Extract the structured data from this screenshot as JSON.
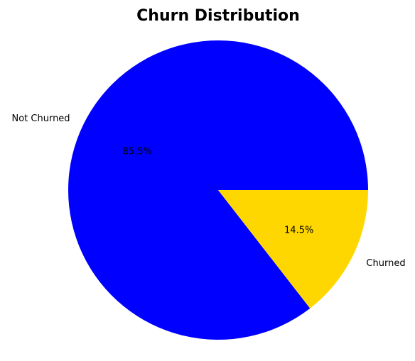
{
  "chart_data": {
    "type": "pie",
    "title": "Churn Distribution",
    "categories": [
      "Not Churned",
      "Churned"
    ],
    "values": [
      85.5,
      14.5
    ],
    "percent_labels": [
      "85.5%",
      "14.5%"
    ],
    "colors": [
      "#0000ff",
      "#ffd700"
    ]
  }
}
